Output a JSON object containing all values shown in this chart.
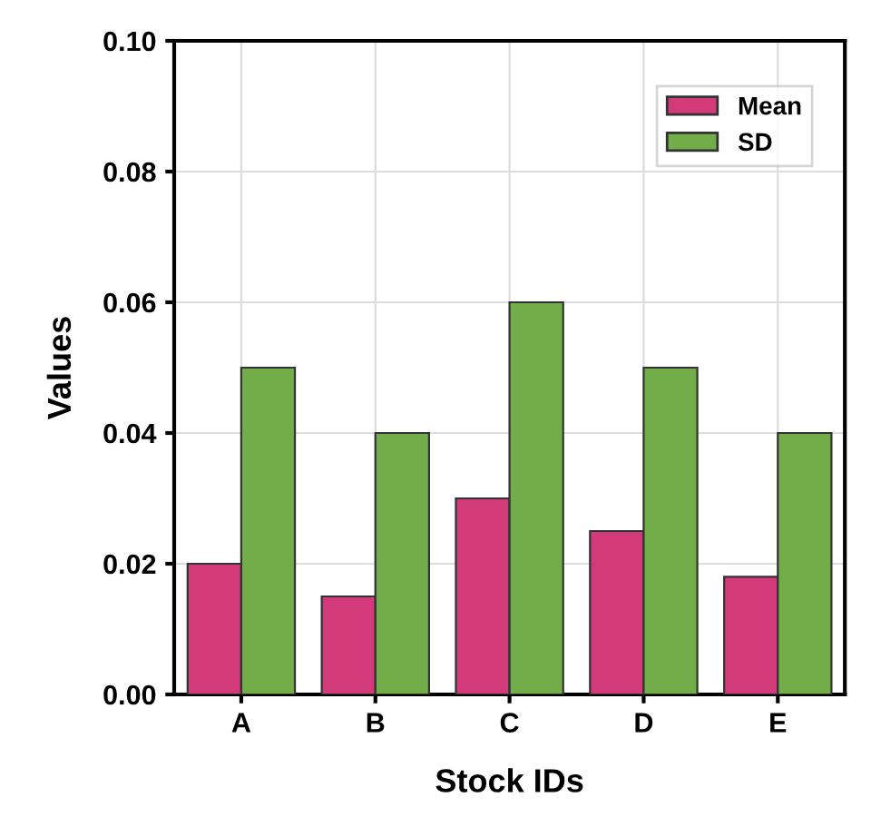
{
  "chart_data": {
    "type": "bar",
    "xlabel": "Stock IDs",
    "ylabel": "Values",
    "categories": [
      "A",
      "B",
      "C",
      "D",
      "E"
    ],
    "series": [
      {
        "name": "Mean",
        "color": "#d33a7a",
        "values": [
          0.02,
          0.015,
          0.03,
          0.025,
          0.018
        ]
      },
      {
        "name": "SD",
        "color": "#72ad4a",
        "values": [
          0.05,
          0.04,
          0.06,
          0.05,
          0.04
        ]
      }
    ],
    "ylim": [
      0,
      0.1
    ],
    "yticks": [
      {
        "value": 0,
        "label": "0.00"
      },
      {
        "value": 0.02,
        "label": "0.02"
      },
      {
        "value": 0.04,
        "label": "0.04"
      },
      {
        "value": 0.06,
        "label": "0.06"
      },
      {
        "value": 0.08,
        "label": "0.08"
      },
      {
        "value": 0.1,
        "label": "0.10"
      }
    ],
    "grid": true,
    "legend": "top right"
  }
}
